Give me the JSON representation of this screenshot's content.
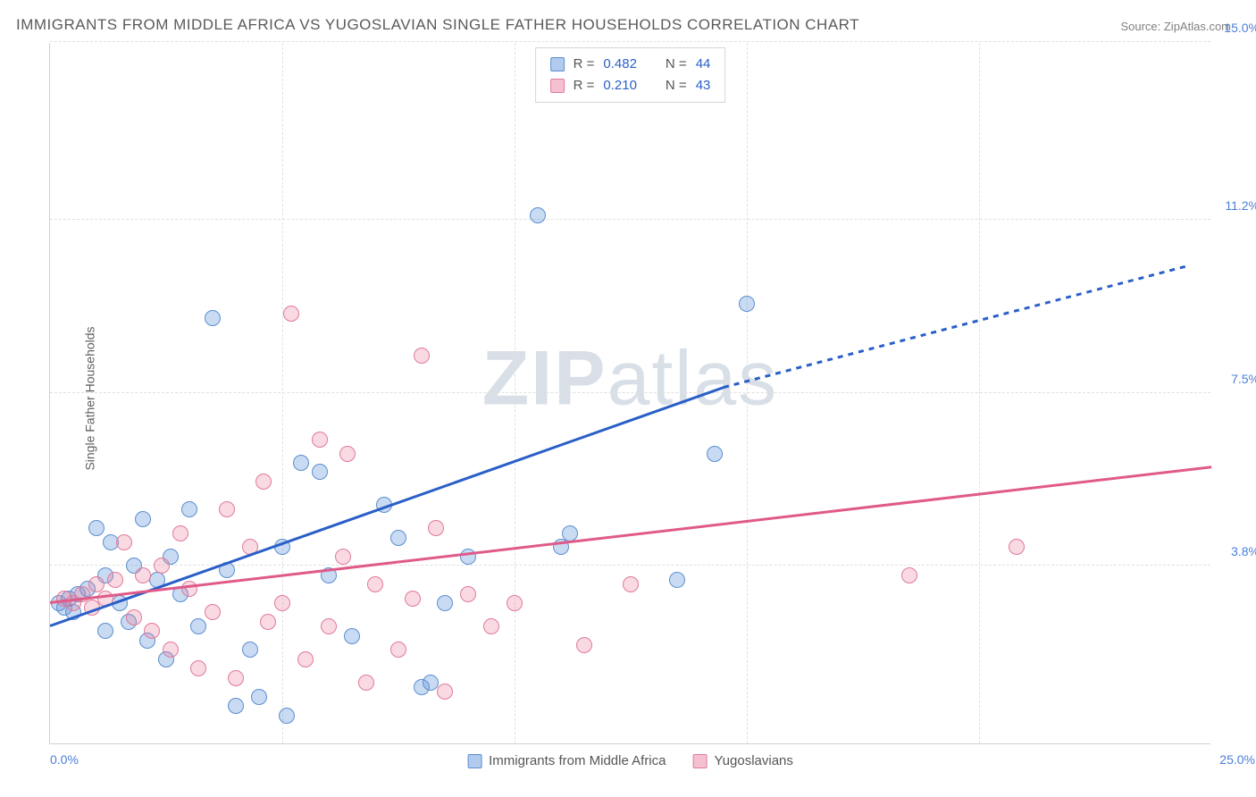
{
  "title": "IMMIGRANTS FROM MIDDLE AFRICA VS YUGOSLAVIAN SINGLE FATHER HOUSEHOLDS CORRELATION CHART",
  "source": "Source: ZipAtlas.com",
  "y_axis_label": "Single Father Households",
  "watermark_a": "ZIP",
  "watermark_b": "atlas",
  "chart": {
    "type": "scatter",
    "xlim": [
      0,
      25
    ],
    "ylim": [
      0,
      15
    ],
    "x_tick_min": "0.0%",
    "x_tick_max": "25.0%",
    "y_ticks": [
      {
        "value": 3.8,
        "label": "3.8%"
      },
      {
        "value": 7.5,
        "label": "7.5%"
      },
      {
        "value": 11.2,
        "label": "11.2%"
      },
      {
        "value": 15.0,
        "label": "15.0%"
      }
    ],
    "grid_y": [
      3.8,
      7.5,
      11.2,
      15.0
    ],
    "grid_x": [
      5,
      10,
      15,
      20
    ],
    "background_color": "#ffffff",
    "grid_color": "#e0e0e0",
    "series": [
      {
        "name": "Immigrants from Middle Africa",
        "color_fill": "rgba(100,150,220,0.35)",
        "color_stroke": "#5a8fd0",
        "marker_radius": 9,
        "R": "0.482",
        "N": "44",
        "regression": {
          "x1": 0,
          "y1": 2.5,
          "x2": 14.5,
          "y2": 7.6,
          "x2_dash": 24.5,
          "y2_dash": 10.2,
          "color": "#2a5fc8"
        },
        "points": [
          [
            0.2,
            3.0
          ],
          [
            0.3,
            2.9
          ],
          [
            0.4,
            3.1
          ],
          [
            0.5,
            2.8
          ],
          [
            0.6,
            3.2
          ],
          [
            0.8,
            3.3
          ],
          [
            1.0,
            4.6
          ],
          [
            1.2,
            2.4
          ],
          [
            1.2,
            3.6
          ],
          [
            1.3,
            4.3
          ],
          [
            1.5,
            3.0
          ],
          [
            1.7,
            2.6
          ],
          [
            1.8,
            3.8
          ],
          [
            2.0,
            4.8
          ],
          [
            2.1,
            2.2
          ],
          [
            2.3,
            3.5
          ],
          [
            2.5,
            1.8
          ],
          [
            2.6,
            4.0
          ],
          [
            2.8,
            3.2
          ],
          [
            3.0,
            5.0
          ],
          [
            3.2,
            2.5
          ],
          [
            3.5,
            9.1
          ],
          [
            3.8,
            3.7
          ],
          [
            4.0,
            0.8
          ],
          [
            4.3,
            2.0
          ],
          [
            4.5,
            1.0
          ],
          [
            5.0,
            4.2
          ],
          [
            5.1,
            0.6
          ],
          [
            5.4,
            6.0
          ],
          [
            5.8,
            5.8
          ],
          [
            6.0,
            3.6
          ],
          [
            6.5,
            2.3
          ],
          [
            7.2,
            5.1
          ],
          [
            7.5,
            4.4
          ],
          [
            8.0,
            1.2
          ],
          [
            8.2,
            1.3
          ],
          [
            8.5,
            3.0
          ],
          [
            9.0,
            4.0
          ],
          [
            10.5,
            11.3
          ],
          [
            11.2,
            4.5
          ],
          [
            13.5,
            3.5
          ],
          [
            15.0,
            9.4
          ],
          [
            14.3,
            6.2
          ],
          [
            11.0,
            4.2
          ]
        ]
      },
      {
        "name": "Yugoslians",
        "label": "Yugoslavians",
        "color_fill": "rgba(235,130,160,0.3)",
        "color_stroke": "#e07a9a",
        "marker_radius": 9,
        "R": "0.210",
        "N": "43",
        "regression": {
          "x1": 0,
          "y1": 3.0,
          "x2": 25,
          "y2": 5.9,
          "color": "#e05a88"
        },
        "points": [
          [
            0.3,
            3.1
          ],
          [
            0.5,
            3.0
          ],
          [
            0.7,
            3.2
          ],
          [
            0.9,
            2.9
          ],
          [
            1.0,
            3.4
          ],
          [
            1.2,
            3.1
          ],
          [
            1.4,
            3.5
          ],
          [
            1.6,
            4.3
          ],
          [
            1.8,
            2.7
          ],
          [
            2.0,
            3.6
          ],
          [
            2.2,
            2.4
          ],
          [
            2.4,
            3.8
          ],
          [
            2.6,
            2.0
          ],
          [
            2.8,
            4.5
          ],
          [
            3.0,
            3.3
          ],
          [
            3.2,
            1.6
          ],
          [
            3.5,
            2.8
          ],
          [
            3.8,
            5.0
          ],
          [
            4.0,
            1.4
          ],
          [
            4.3,
            4.2
          ],
          [
            4.6,
            5.6
          ],
          [
            4.7,
            2.6
          ],
          [
            5.0,
            3.0
          ],
          [
            5.2,
            9.2
          ],
          [
            5.5,
            1.8
          ],
          [
            5.8,
            6.5
          ],
          [
            6.0,
            2.5
          ],
          [
            6.3,
            4.0
          ],
          [
            6.4,
            6.2
          ],
          [
            6.8,
            1.3
          ],
          [
            7.0,
            3.4
          ],
          [
            7.5,
            2.0
          ],
          [
            8.0,
            8.3
          ],
          [
            8.3,
            4.6
          ],
          [
            8.5,
            1.1
          ],
          [
            9.0,
            3.2
          ],
          [
            9.5,
            2.5
          ],
          [
            10.0,
            3.0
          ],
          [
            11.5,
            2.1
          ],
          [
            12.5,
            3.4
          ],
          [
            18.5,
            3.6
          ],
          [
            20.8,
            4.2
          ],
          [
            7.8,
            3.1
          ]
        ]
      }
    ],
    "legend_top": [
      {
        "swatch": "blue",
        "r_label": "R =",
        "r_val": "0.482",
        "n_label": "N =",
        "n_val": "44"
      },
      {
        "swatch": "pink",
        "r_label": "R =",
        "r_val": "0.210",
        "n_label": "N =",
        "n_val": "43"
      }
    ],
    "legend_bottom": [
      {
        "swatch": "blue",
        "label": "Immigrants from Middle Africa"
      },
      {
        "swatch": "pink",
        "label": "Yugoslavians"
      }
    ]
  }
}
